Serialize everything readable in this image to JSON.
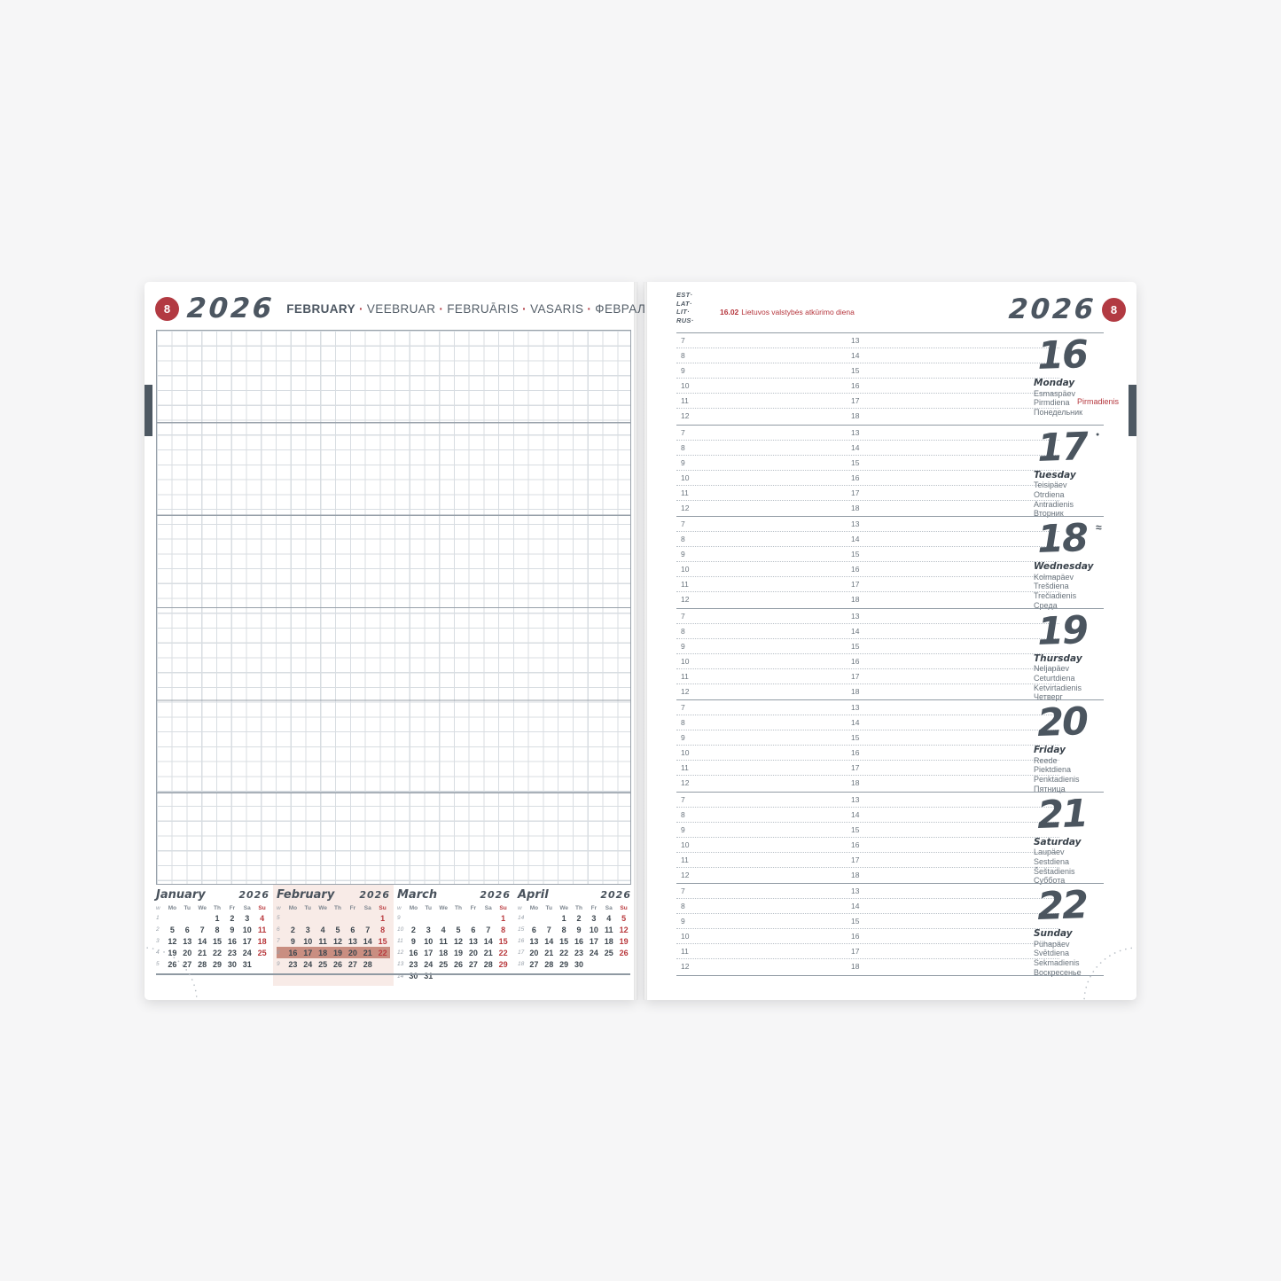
{
  "colors": {
    "accent_red": "#b23a42",
    "holiday_red": "#b5353c",
    "slate": "#4c5661",
    "highlight_band": "#c98e81",
    "highlight_bg": "#f8ebe7"
  },
  "left_page": {
    "week_number": "8",
    "year": "2026",
    "month": "FEBRUARY",
    "month_translations": [
      "VEEBRUAR",
      "FEBRUĀRIS",
      "VASARIS",
      "ФЕВРАЛЬ"
    ],
    "separator": "·",
    "mini_calendars": [
      {
        "month": "January",
        "year": "2026",
        "headers": [
          "w",
          "Mo",
          "Tu",
          "We",
          "Th",
          "Fr",
          "Sa",
          "Su"
        ],
        "weeks": [
          {
            "n": "1",
            "d": [
              "",
              "",
              "",
              "1",
              "2",
              "3",
              "4"
            ]
          },
          {
            "n": "2",
            "d": [
              "5",
              "6",
              "7",
              "8",
              "9",
              "10",
              "11"
            ]
          },
          {
            "n": "3",
            "d": [
              "12",
              "13",
              "14",
              "15",
              "16",
              "17",
              "18"
            ]
          },
          {
            "n": "4",
            "d": [
              "19",
              "20",
              "21",
              "22",
              "23",
              "24",
              "25"
            ]
          },
          {
            "n": "5",
            "d": [
              "26",
              "27",
              "28",
              "29",
              "30",
              "31",
              ""
            ]
          }
        ]
      },
      {
        "month": "February",
        "year": "2026",
        "highlighted": true,
        "highlight_week": "8",
        "headers": [
          "w",
          "Mo",
          "Tu",
          "We",
          "Th",
          "Fr",
          "Sa",
          "Su"
        ],
        "weeks": [
          {
            "n": "5",
            "d": [
              "",
              "",
              "",
              "",
              "",
              "",
              "1"
            ]
          },
          {
            "n": "6",
            "d": [
              "2",
              "3",
              "4",
              "5",
              "6",
              "7",
              "8"
            ]
          },
          {
            "n": "7",
            "d": [
              "9",
              "10",
              "11",
              "12",
              "13",
              "14",
              "15"
            ]
          },
          {
            "n": "8",
            "d": [
              "16",
              "17",
              "18",
              "19",
              "20",
              "21",
              "22"
            ]
          },
          {
            "n": "9",
            "d": [
              "23",
              "24",
              "25",
              "26",
              "27",
              "28",
              ""
            ]
          }
        ]
      },
      {
        "month": "March",
        "year": "2026",
        "headers": [
          "w",
          "Mo",
          "Tu",
          "We",
          "Th",
          "Fr",
          "Sa",
          "Su"
        ],
        "weeks": [
          {
            "n": "9",
            "d": [
              "",
              "",
              "",
              "",
              "",
              "",
              "1"
            ]
          },
          {
            "n": "10",
            "d": [
              "2",
              "3",
              "4",
              "5",
              "6",
              "7",
              "8"
            ]
          },
          {
            "n": "11",
            "d": [
              "9",
              "10",
              "11",
              "12",
              "13",
              "14",
              "15"
            ]
          },
          {
            "n": "12",
            "d": [
              "16",
              "17",
              "18",
              "19",
              "20",
              "21",
              "22"
            ]
          },
          {
            "n": "13",
            "d": [
              "23",
              "24",
              "25",
              "26",
              "27",
              "28",
              "29"
            ]
          },
          {
            "n": "14",
            "d": [
              "30",
              "31",
              "",
              "",
              "",
              "",
              ""
            ]
          }
        ]
      },
      {
        "month": "April",
        "year": "2026",
        "headers": [
          "w",
          "Mo",
          "Tu",
          "We",
          "Th",
          "Fr",
          "Sa",
          "Su"
        ],
        "weeks": [
          {
            "n": "14",
            "d": [
              "",
              "",
              "1",
              "2",
              "3",
              "4",
              "5"
            ]
          },
          {
            "n": "15",
            "d": [
              "6",
              "7",
              "8",
              "9",
              "10",
              "11",
              "12"
            ]
          },
          {
            "n": "16",
            "d": [
              "13",
              "14",
              "15",
              "16",
              "17",
              "18",
              "19"
            ]
          },
          {
            "n": "17",
            "d": [
              "20",
              "21",
              "22",
              "23",
              "24",
              "25",
              "26"
            ]
          },
          {
            "n": "18",
            "d": [
              "27",
              "28",
              "29",
              "30",
              "",
              "",
              ""
            ]
          }
        ]
      }
    ]
  },
  "right_page": {
    "lang_labels": [
      "EST·",
      "LAT·",
      "LIT·",
      "RUS·"
    ],
    "holiday_date": "16.02",
    "holiday_name": "Lietuvos valstybės atkūrimo diena",
    "year": "2026",
    "week_number": "8",
    "morning_hours": [
      "7",
      "8",
      "9",
      "10",
      "11",
      "12"
    ],
    "afternoon_hours": [
      "13",
      "14",
      "15",
      "16",
      "17",
      "18"
    ],
    "days": [
      {
        "date": "16",
        "names": [
          "Monday",
          "Esmaspäev",
          "Pirmdiena",
          "Pirmadienis",
          "Понедельник"
        ],
        "holiday_name_index": 3,
        "marker": ""
      },
      {
        "date": "17",
        "names": [
          "Tuesday",
          "Teisipäev",
          "Otrdiena",
          "Antradienis",
          "Вторник"
        ],
        "marker": "new-moon"
      },
      {
        "date": "18",
        "names": [
          "Wednesday",
          "Kolmapäev",
          "Trešdiena",
          "Trečiadienis",
          "Среда"
        ],
        "marker": "zodiac"
      },
      {
        "date": "19",
        "names": [
          "Thursday",
          "Neljapäev",
          "Ceturtdiena",
          "Ketvirtadienis",
          "Четверг"
        ],
        "marker": ""
      },
      {
        "date": "20",
        "names": [
          "Friday",
          "Reede",
          "Piektdiena",
          "Penktadienis",
          "Пятница"
        ],
        "marker": ""
      },
      {
        "date": "21",
        "names": [
          "Saturday",
          "Laupäev",
          "Sestdiena",
          "Šeštadienis",
          "Суббота"
        ],
        "marker": ""
      },
      {
        "date": "22",
        "names": [
          "Sunday",
          "Pühapäev",
          "Svētdiena",
          "Sekmadienis",
          "Воскресенье"
        ],
        "marker": ""
      }
    ]
  }
}
